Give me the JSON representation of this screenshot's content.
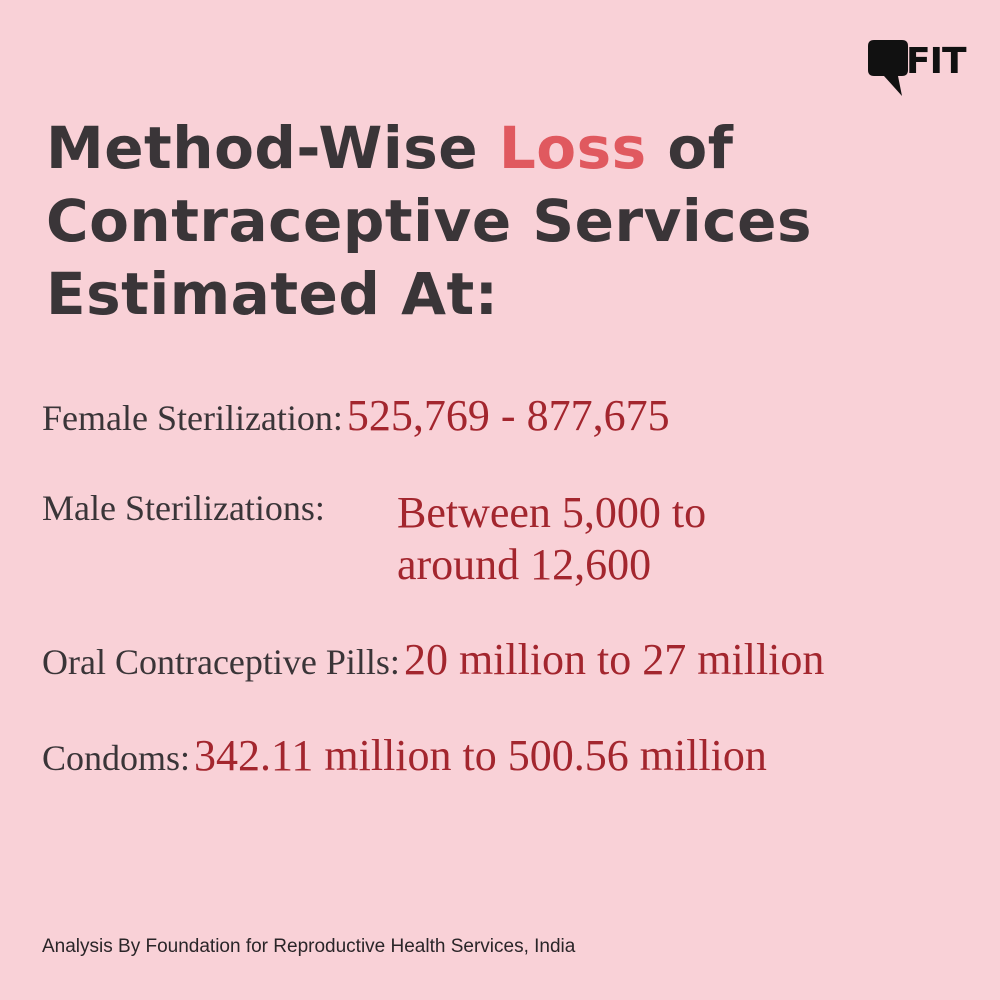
{
  "brand": {
    "logo_text": "FIT",
    "logo_icon": "speech-bubble-icon"
  },
  "title": {
    "line1_before": "Method-Wise ",
    "line1_accent": "Loss",
    "line1_after": " of",
    "line2": "Contraceptive Services",
    "line3": "Estimated At:"
  },
  "items": [
    {
      "label": "Female Sterilization:",
      "value": "525,769 - 877,675"
    },
    {
      "label": "Male Sterilizations:",
      "value_line1": "Between 5,000 to",
      "value_line2": "around 12,600"
    },
    {
      "label": "Oral Contraceptive Pills:",
      "value": "20 million to 27 million"
    },
    {
      "label": "Condoms:",
      "value": "342.11 million to 500.56 million"
    }
  ],
  "footer": {
    "source": "Analysis By Foundation for Reproductive Health Services, India"
  },
  "colors": {
    "background": "#f9d1d7",
    "title_text": "#3a3538",
    "title_accent": "#e0595f",
    "value_text": "#a3262e"
  }
}
